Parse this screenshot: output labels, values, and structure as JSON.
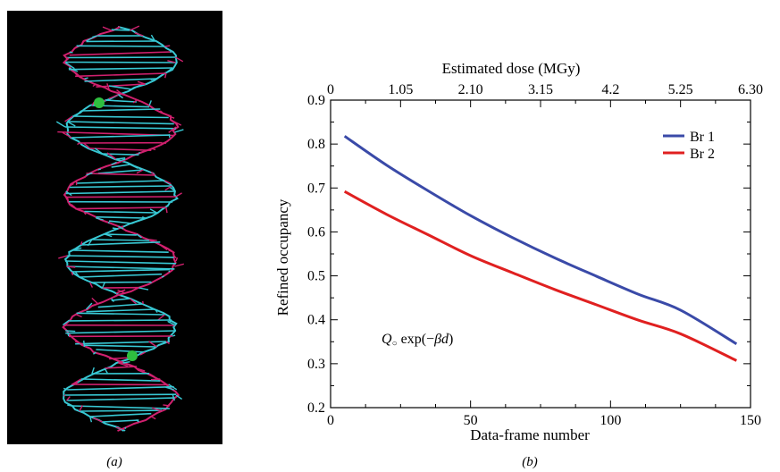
{
  "panel_a": {
    "label": "(a)",
    "background": "#000000",
    "atom_colors": {
      "carbon": "#38c8d4",
      "oxygen": "#d0206e",
      "bromine": "#2fbf3f"
    }
  },
  "panel_b": {
    "label": "(b)",
    "annotation": "Q",
    "annotation_sub": "○",
    "annotation_rest": " exp(−",
    "annotation_beta": "βd",
    "annotation_close": ")"
  },
  "chart_data": {
    "type": "line",
    "xlabel": "Data-frame number",
    "ylabel": "Refined occupancy",
    "x2label": "Estimated dose (MGy)",
    "xlim": [
      0,
      150
    ],
    "ylim": [
      0.2,
      0.9
    ],
    "x_ticks": [
      "0",
      "50",
      "100",
      "150"
    ],
    "x_tick_values": [
      0,
      50,
      100,
      150
    ],
    "y_ticks": [
      "0.2",
      "0.3",
      "0.4",
      "0.5",
      "0.6",
      "0.7",
      "0.8",
      "0.9"
    ],
    "y_tick_values": [
      0.2,
      0.3,
      0.4,
      0.5,
      0.6,
      0.7,
      0.8,
      0.9
    ],
    "x2_ticks": [
      "0",
      "1.05",
      "2.10",
      "3.15",
      "4.2",
      "5.25",
      "6.30"
    ],
    "x2_tick_values": [
      0,
      1.05,
      2.1,
      3.15,
      4.2,
      5.25,
      6.3
    ],
    "x2lim": [
      0,
      6.3
    ],
    "legend_position": "top-right",
    "grid": false,
    "series": [
      {
        "name": "Br 1",
        "color": "#3a4aa8",
        "x": [
          5,
          20,
          35,
          50,
          65,
          80,
          95,
          110,
          125,
          145
        ],
        "values": [
          0.818,
          0.752,
          0.693,
          0.637,
          0.587,
          0.541,
          0.499,
          0.458,
          0.422,
          0.345
        ]
      },
      {
        "name": "Br 2",
        "color": "#e02020",
        "x": [
          5,
          20,
          35,
          50,
          65,
          80,
          95,
          110,
          125,
          145
        ],
        "values": [
          0.692,
          0.64,
          0.593,
          0.546,
          0.507,
          0.469,
          0.434,
          0.399,
          0.368,
          0.307
        ]
      }
    ]
  }
}
